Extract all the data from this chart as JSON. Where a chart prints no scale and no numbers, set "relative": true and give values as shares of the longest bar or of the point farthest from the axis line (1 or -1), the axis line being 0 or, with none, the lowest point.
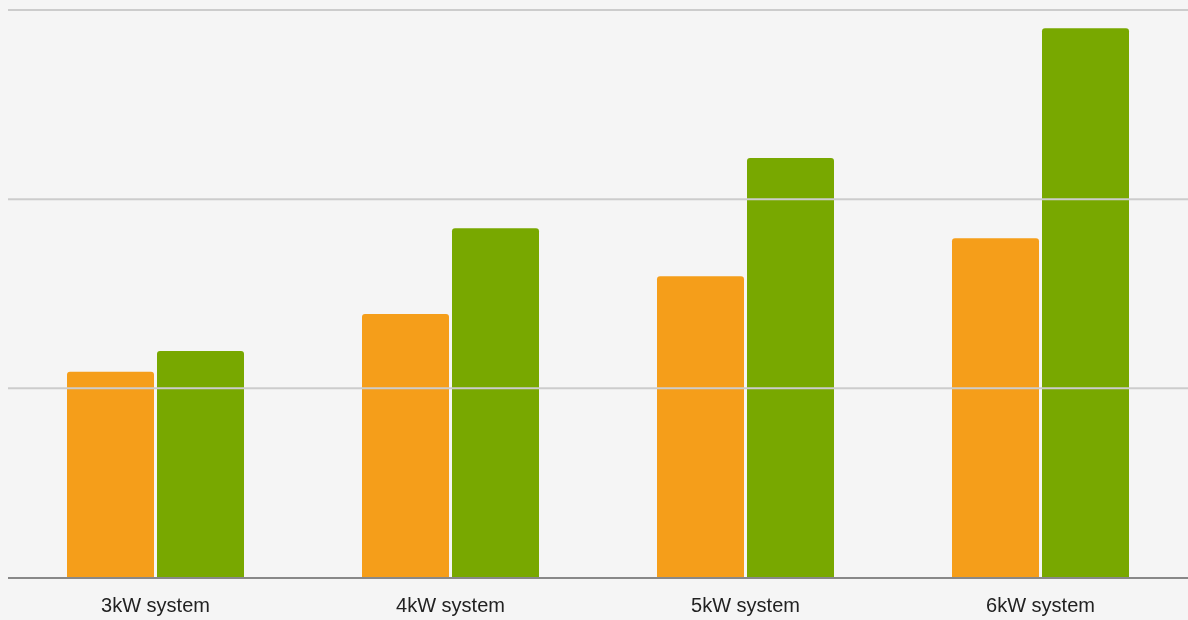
{
  "chart_data": {
    "type": "bar",
    "relative": true,
    "categories": [
      "3kW system",
      "4kW system",
      "5kW system",
      "6kW system"
    ],
    "series": [
      {
        "color": "#f59e1a",
        "values": [
          0.375,
          0.48,
          0.549,
          0.618
        ]
      },
      {
        "color": "#78a800",
        "values": [
          0.413,
          0.636,
          0.764,
          1
        ]
      }
    ],
    "ref_lines": [
      {
        "axis": "y",
        "value": 0.345,
        "color": "#cccccc"
      },
      {
        "axis": "y",
        "value": 0.689,
        "color": "#cccccc"
      },
      {
        "axis": "y",
        "value": 1.033,
        "color": "#cccccc"
      }
    ]
  }
}
